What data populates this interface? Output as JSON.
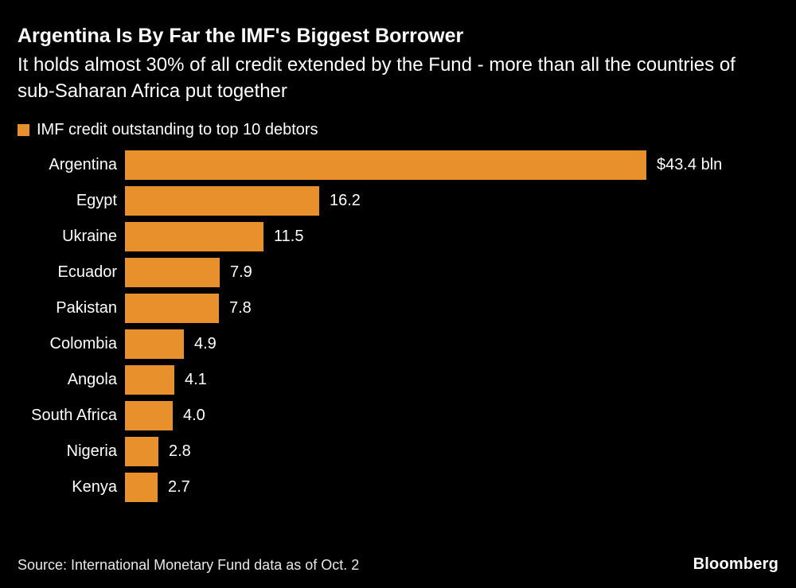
{
  "header": {
    "title": "Argentina Is By Far the IMF's Biggest Borrower",
    "subtitle": "It holds almost 30% of all credit extended by the Fund - more than all the countries of sub-Saharan Africa put together"
  },
  "legend": {
    "label": "IMF credit outstanding to top 10 debtors",
    "swatch_color": "#E8912C"
  },
  "chart_data": {
    "type": "bar",
    "orientation": "horizontal",
    "title": "IMF credit outstanding to top 10 debtors",
    "categories": [
      "Argentina",
      "Egypt",
      "Ukraine",
      "Ecuador",
      "Pakistan",
      "Colombia",
      "Angola",
      "South Africa",
      "Nigeria",
      "Kenya"
    ],
    "values": [
      43.4,
      16.2,
      11.5,
      7.9,
      7.8,
      4.9,
      4.1,
      4.0,
      2.8,
      2.7
    ],
    "value_labels": [
      "$43.4 bln",
      "16.2",
      "11.5",
      "7.9",
      "7.8",
      "4.9",
      "4.1",
      "4.0",
      "2.8",
      "2.7"
    ],
    "unit": "$ bln",
    "xlim": [
      0,
      43.4
    ],
    "bar_color": "#E8912C",
    "background_color": "#000000",
    "grid": false,
    "legend_position": "top-left"
  },
  "footer": {
    "source": "Source: International Monetary Fund data as of Oct. 2",
    "brand": "Bloomberg"
  }
}
